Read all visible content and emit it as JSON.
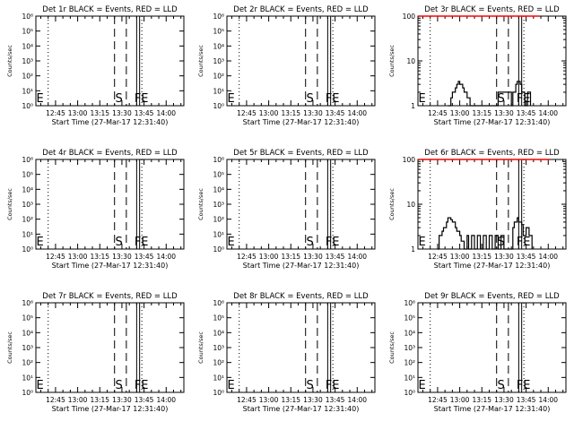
{
  "figure": {
    "x_axis_label": "Start Time (27-Mar-17 12:31:40)",
    "y_axis_label": "Counts/sec",
    "x_tick_labels": [
      "12:45",
      "13:00",
      "13:15",
      "13:30",
      "13:45",
      "14:00"
    ]
  },
  "chart_data": [
    {
      "type": "line",
      "title": "Det 1r BLACK = Events, RED = LLD",
      "ylabel": "Counts/sec",
      "xlabel": "Start Time (27-Mar-17 12:31:40)",
      "y_scale": "log",
      "ylim": [
        1,
        1000000
      ],
      "grid": false,
      "y_tick_labels": [
        "10⁰",
        "10¹",
        "10²",
        "10³",
        "10⁴",
        "10⁵",
        "10⁶"
      ],
      "x_ticks": [
        "12:45",
        "13:00",
        "13:15",
        "13:30",
        "13:45",
        "14:00"
      ],
      "markers": [
        "E",
        "S",
        "F",
        "E"
      ],
      "series": []
    },
    {
      "type": "line",
      "title": "Det 2r BLACK = Events, RED = LLD",
      "ylabel": "Counts/sec",
      "xlabel": "Start Time (27-Mar-17 12:31:40)",
      "y_scale": "log",
      "ylim": [
        1,
        1000000
      ],
      "grid": false,
      "y_tick_labels": [
        "10⁰",
        "10¹",
        "10²",
        "10³",
        "10⁴",
        "10⁵",
        "10⁶"
      ],
      "x_ticks": [
        "12:45",
        "13:00",
        "13:15",
        "13:30",
        "13:45",
        "14:00"
      ],
      "markers": [
        "E",
        "S",
        "F",
        "E"
      ],
      "series": []
    },
    {
      "type": "line",
      "title": "Det 3r BLACK = Events, RED = LLD",
      "ylabel": "Counts/sec",
      "xlabel": "Start Time (27-Mar-17 12:31:40)",
      "y_scale": "log",
      "ylim": [
        1,
        100
      ],
      "grid": false,
      "y_tick_labels": [
        "1",
        "10",
        "100"
      ],
      "x_ticks": [
        "12:45",
        "13:00",
        "13:15",
        "13:30",
        "13:45",
        "14:00"
      ],
      "markers": [
        "E",
        "S",
        "F",
        "E"
      ],
      "series": [
        {
          "color": "#000000",
          "x": [
            "12:52",
            "12:54",
            "12:55",
            "12:57",
            "12:58",
            "12:59",
            "13:00",
            "13:02",
            "13:03",
            "13:05",
            "13:07",
            "13:12",
            "13:24",
            "13:26",
            "13:35",
            "13:36",
            "13:38",
            "13:39",
            "13:41",
            "13:42",
            "13:44",
            "13:46",
            "13:48"
          ],
          "y": [
            1,
            1.5,
            2,
            2.5,
            3,
            3.5,
            3,
            2.5,
            2,
            1.5,
            1,
            1,
            1,
            2,
            1,
            2,
            3,
            3.5,
            3,
            2,
            1,
            2,
            1
          ]
        },
        {
          "color": "#ff0000",
          "x": [
            "12:32",
            "12:36",
            "13:42",
            "13:54"
          ],
          "y": [
            100,
            100,
            100,
            100
          ]
        }
      ]
    },
    {
      "type": "line",
      "title": "Det 4r BLACK = Events, RED = LLD",
      "ylabel": "Counts/sec",
      "xlabel": "Start Time (27-Mar-17 12:31:40)",
      "y_scale": "log",
      "ylim": [
        1,
        1000000
      ],
      "grid": false,
      "y_tick_labels": [
        "10⁰",
        "10¹",
        "10²",
        "10³",
        "10⁴",
        "10⁵",
        "10⁶"
      ],
      "x_ticks": [
        "12:45",
        "13:00",
        "13:15",
        "13:30",
        "13:45",
        "14:00"
      ],
      "markers": [
        "E",
        "S",
        "F",
        "E"
      ],
      "series": []
    },
    {
      "type": "line",
      "title": "Det 5r BLACK = Events, RED = LLD",
      "ylabel": "Counts/sec",
      "xlabel": "Start Time (27-Mar-17 12:31:40)",
      "y_scale": "log",
      "ylim": [
        1,
        1000000
      ],
      "grid": false,
      "y_tick_labels": [
        "10⁰",
        "10¹",
        "10²",
        "10³",
        "10⁴",
        "10⁵",
        "10⁶"
      ],
      "x_ticks": [
        "12:45",
        "13:00",
        "13:15",
        "13:30",
        "13:45",
        "14:00"
      ],
      "markers": [
        "E",
        "S",
        "F",
        "E"
      ],
      "series": []
    },
    {
      "type": "line",
      "title": "Det 6r BLACK = Events, RED = LLD",
      "ylabel": "Counts/sec",
      "xlabel": "Start Time (27-Mar-17 12:31:40)",
      "y_scale": "log",
      "ylim": [
        1,
        100
      ],
      "grid": false,
      "y_tick_labels": [
        "1",
        "10",
        "100"
      ],
      "x_ticks": [
        "12:45",
        "13:00",
        "13:15",
        "13:30",
        "13:45",
        "14:00"
      ],
      "markers": [
        "E",
        "S",
        "F",
        "E"
      ],
      "series": [
        {
          "color": "#000000",
          "x": [
            "12:45",
            "12:46",
            "12:48",
            "12:49",
            "12:51",
            "12:52",
            "12:54",
            "12:55",
            "12:57",
            "12:58",
            "13:00",
            "13:01",
            "13:03",
            "13:05",
            "13:06",
            "13:08",
            "13:10",
            "13:12",
            "13:14",
            "13:16",
            "13:18",
            "13:20",
            "13:22",
            "13:24",
            "13:26",
            "13:28",
            "13:30",
            "13:34",
            "13:36",
            "13:37",
            "13:39",
            "13:40",
            "13:42",
            "13:43",
            "13:45",
            "13:47",
            "13:49"
          ],
          "y": [
            1,
            2,
            2.5,
            3,
            4,
            5,
            4.5,
            4,
            3,
            2.5,
            2,
            1.5,
            1,
            2,
            1,
            2,
            1,
            2,
            1,
            2,
            1,
            2,
            1,
            2,
            1,
            2,
            1,
            1,
            3,
            4,
            5,
            4,
            3.5,
            2,
            3,
            2,
            1
          ]
        },
        {
          "color": "#ff0000",
          "x": [
            "12:32",
            "12:34",
            "13:58",
            "14:01"
          ],
          "y": [
            100,
            100,
            100,
            100
          ]
        }
      ]
    },
    {
      "type": "line",
      "title": "Det 7r BLACK = Events, RED = LLD",
      "ylabel": "Counts/sec",
      "xlabel": "Start Time (27-Mar-17 12:31:40)",
      "y_scale": "log",
      "ylim": [
        1,
        1000000
      ],
      "grid": false,
      "y_tick_labels": [
        "10⁰",
        "10¹",
        "10²",
        "10³",
        "10⁴",
        "10⁵",
        "10⁶"
      ],
      "x_ticks": [
        "12:45",
        "13:00",
        "13:15",
        "13:30",
        "13:45",
        "14:00"
      ],
      "markers": [
        "E",
        "S",
        "F",
        "E"
      ],
      "series": []
    },
    {
      "type": "line",
      "title": "Det 8r BLACK = Events, RED = LLD",
      "ylabel": "Counts/sec",
      "xlabel": "Start Time (27-Mar-17 12:31:40)",
      "y_scale": "log",
      "ylim": [
        1,
        1000000
      ],
      "grid": false,
      "y_tick_labels": [
        "10⁰",
        "10¹",
        "10²",
        "10³",
        "10⁴",
        "10⁵",
        "10⁶"
      ],
      "x_ticks": [
        "12:45",
        "13:00",
        "13:15",
        "13:30",
        "13:45",
        "14:00"
      ],
      "markers": [
        "E",
        "S",
        "F",
        "E"
      ],
      "series": []
    },
    {
      "type": "line",
      "title": "Det 9r BLACK = Events, RED = LLD",
      "ylabel": "Counts/sec",
      "xlabel": "Start Time (27-Mar-17 12:31:40)",
      "y_scale": "log",
      "ylim": [
        1,
        1000000
      ],
      "grid": false,
      "y_tick_labels": [
        "10⁰",
        "10¹",
        "10²",
        "10³",
        "10⁴",
        "10⁵",
        "10⁶"
      ],
      "x_ticks": [
        "12:45",
        "13:00",
        "13:15",
        "13:30",
        "13:45",
        "14:00"
      ],
      "markers": [
        "E",
        "S",
        "F",
        "E"
      ],
      "series": []
    }
  ]
}
